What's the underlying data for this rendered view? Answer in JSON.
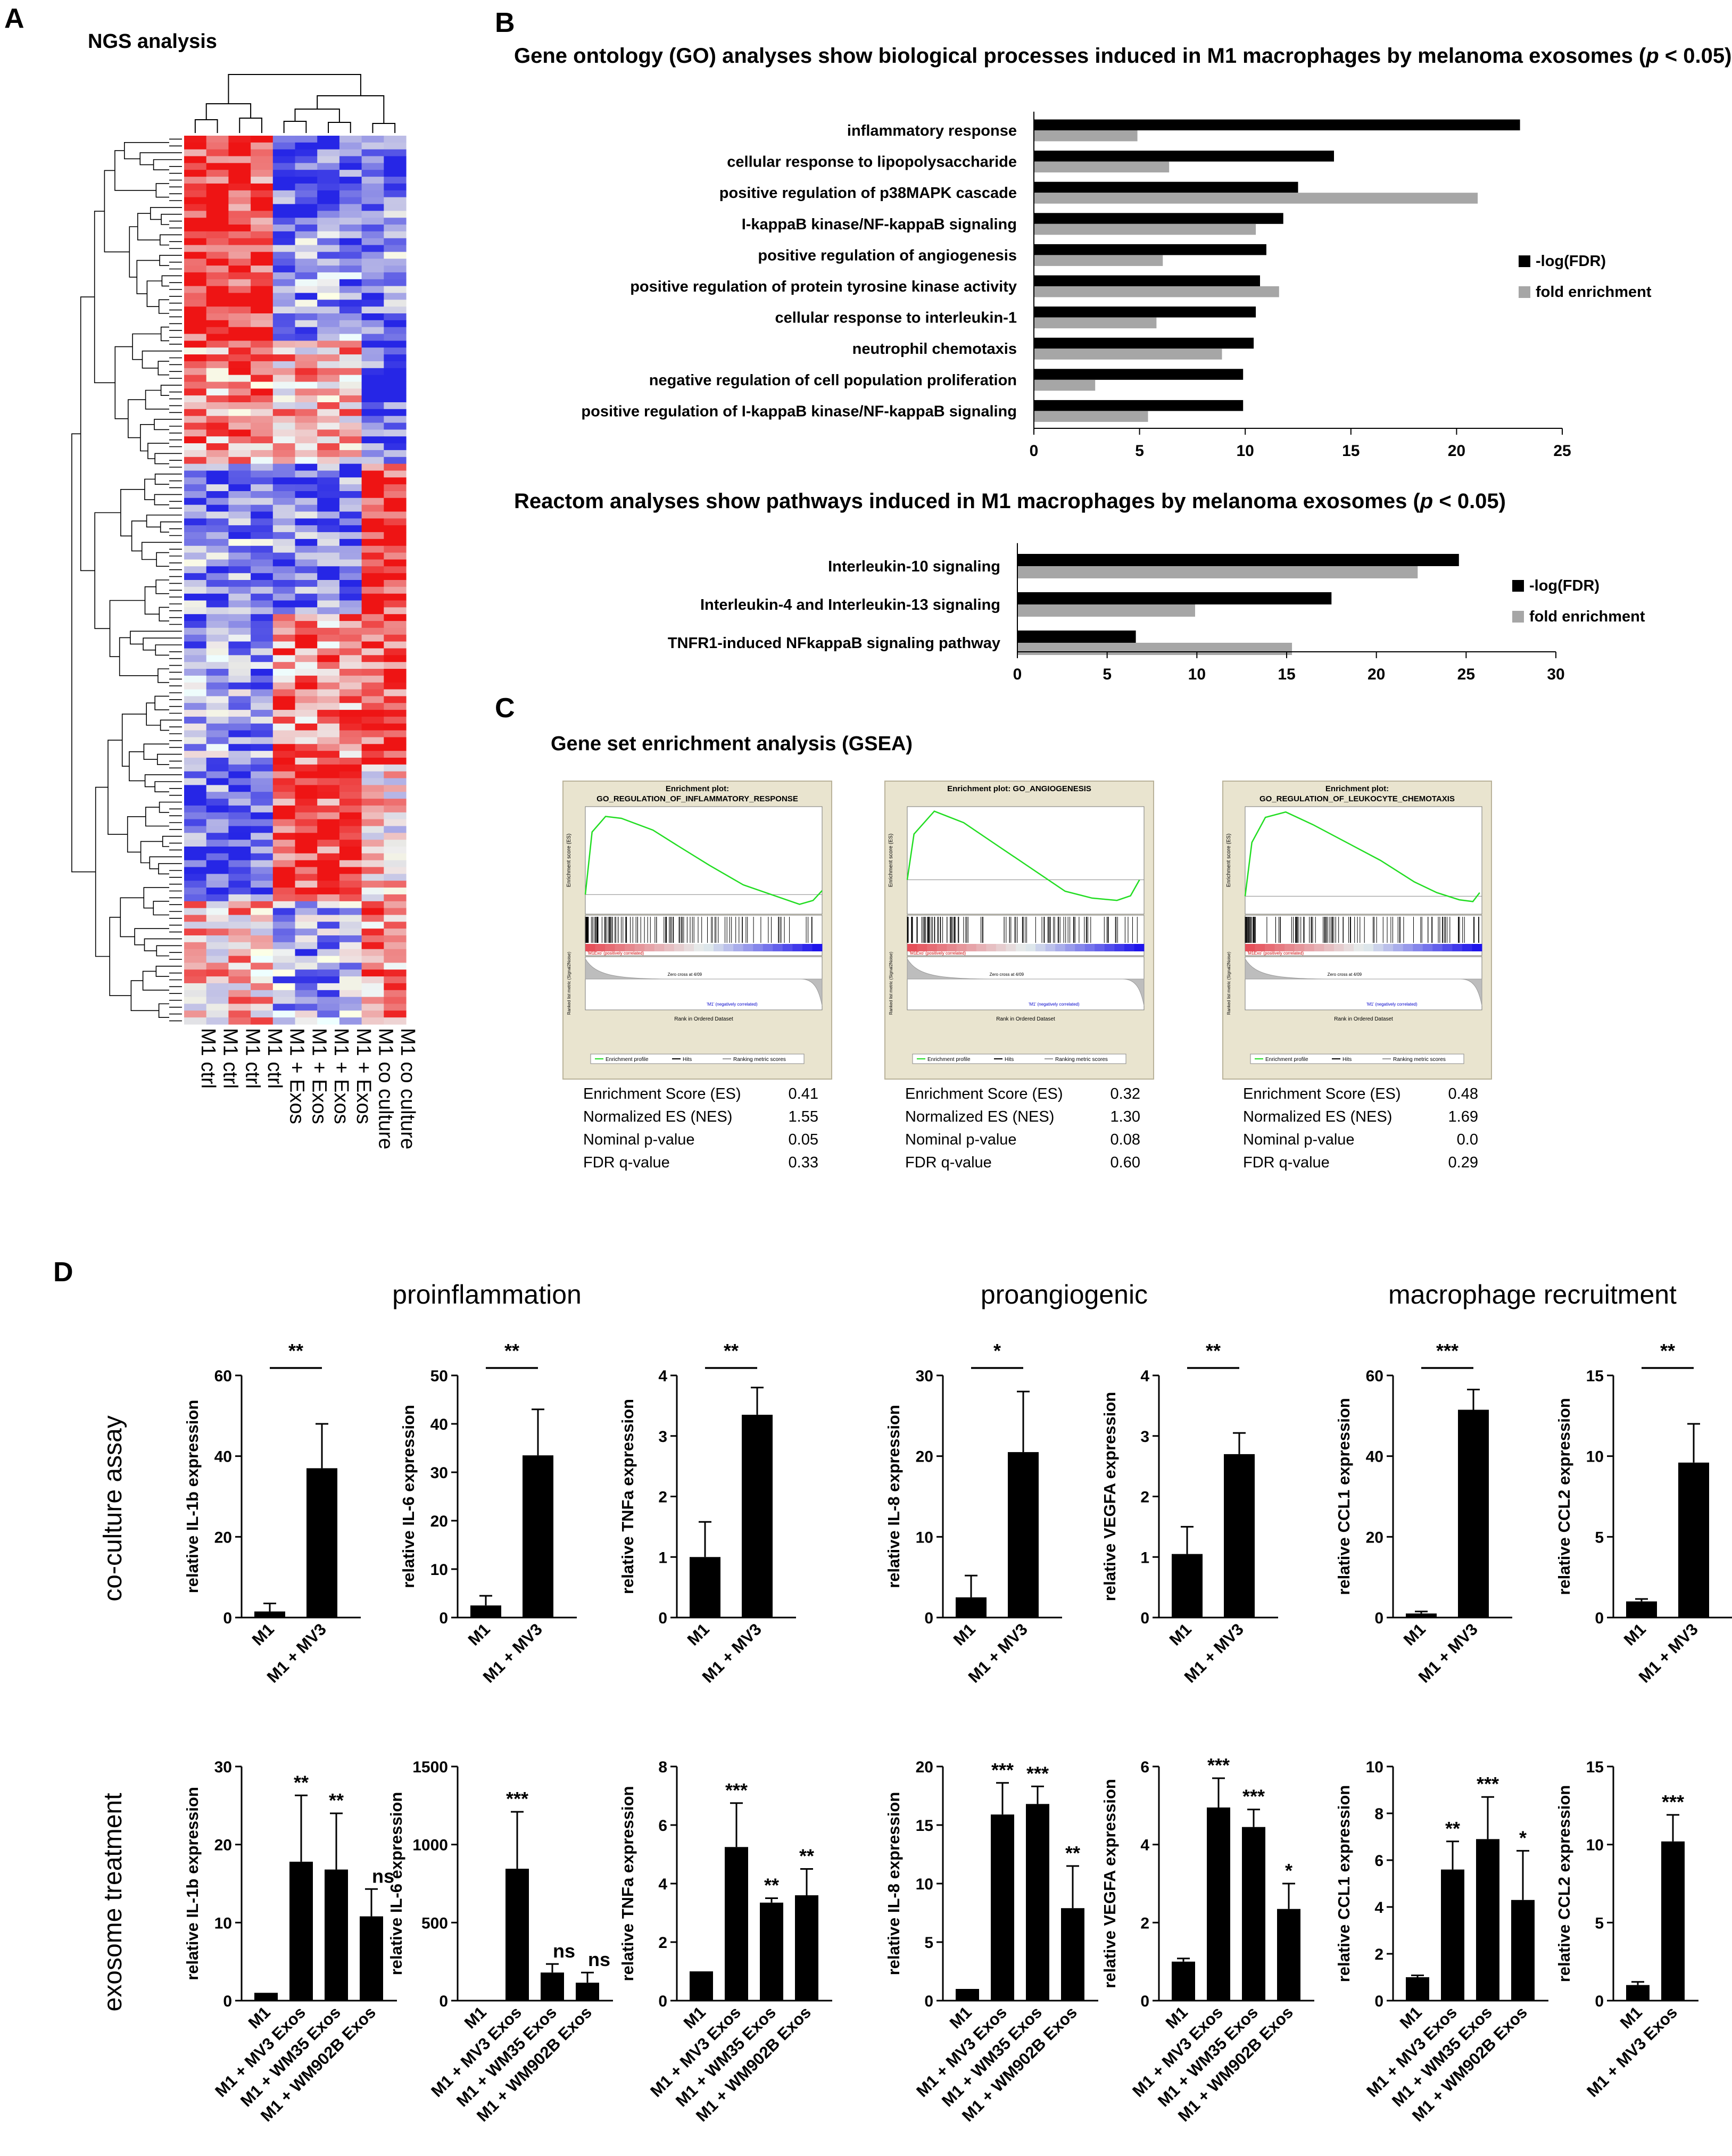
{
  "panel_labels": [
    "A",
    "B",
    "C",
    "D"
  ],
  "chart_data": [
    {
      "type": "heatmap",
      "id": "A",
      "title": "NGS analysis",
      "columns": [
        "M1 ctrl",
        "M1 ctrl",
        "M1 ctrl",
        "M1 ctrl",
        "M1 + Exos",
        "M1 + Exos",
        "M1 + Exos",
        "M1 + Exos",
        "M1 co culture",
        "M1 co culture"
      ],
      "colors": {
        "low": "#2233dd",
        "mid": "#ffffff",
        "high": "#ee1111"
      }
    },
    {
      "type": "bar",
      "id": "B1",
      "orientation": "horizontal",
      "title_pre": "Gene ontology (GO) analyses show biological processes induced in M1 macrophages by melanoma exosomes (",
      "title_p": "p",
      "title_post": " < 0.05)",
      "categories": [
        "inflammatory response",
        "cellular response to lipopolysaccharide",
        "positive regulation of p38MAPK cascade",
        "I-kappaB kinase/NF-kappaB signaling",
        "positive regulation of angiogenesis",
        "positive regulation of protein tyrosine kinase activity",
        "cellular response to interleukin-1",
        "neutrophil chemotaxis",
        "negative regulation of cell population proliferation",
        "positive regulation of I-kappaB kinase/NF-kappaB signaling"
      ],
      "series": [
        {
          "name": "-log(FDR)",
          "color": "#000000",
          "values": [
            23,
            14.2,
            12.5,
            11.8,
            11,
            10.7,
            10.5,
            10.4,
            9.9,
            9.9
          ]
        },
        {
          "name": "fold enrichment",
          "color": "#a6a6a6",
          "values": [
            4.9,
            6.4,
            21,
            10.5,
            6.1,
            11.6,
            5.8,
            8.9,
            2.9,
            5.4
          ]
        }
      ],
      "xlim": [
        0,
        25
      ],
      "xticks": [
        "0",
        "5",
        "10",
        "15",
        "20",
        "25"
      ]
    },
    {
      "type": "bar",
      "id": "B2",
      "orientation": "horizontal",
      "title_pre": "Reactom analyses show pathways induced in M1 macrophages by melanoma exosomes (",
      "title_p": "p",
      "title_post": " < 0.05)",
      "categories": [
        "Interleukin-10 signaling",
        "Interleukin-4 and Interleukin-13 signaling",
        "TNFR1-induced NFkappaB signaling pathway"
      ],
      "series": [
        {
          "name": "-log(FDR)",
          "color": "#000000",
          "values": [
            24.6,
            17.5,
            6.6
          ]
        },
        {
          "name": "fold enrichment",
          "color": "#a6a6a6",
          "values": [
            22.3,
            9.9,
            15.3
          ]
        }
      ],
      "xlim": [
        0,
        30
      ],
      "xticks": [
        "0",
        "5",
        "10",
        "15",
        "20",
        "25",
        "30"
      ]
    },
    {
      "type": "line",
      "id": "C",
      "title": "Gene set enrichment analysis (GSEA)",
      "plots": [
        {
          "plot_title_1": "Enrichment plot:",
          "plot_title_2": "GO_REGULATION_OF_INFLAMMATORY_RESPONSE",
          "ylim": [
            -0.1,
            0.45
          ],
          "es_curve": [
            [
              0,
              0
            ],
            [
              300,
              0.32
            ],
            [
              900,
              0.4
            ],
            [
              1600,
              0.39
            ],
            [
              3000,
              0.33
            ],
            [
              4100,
              0.25
            ],
            [
              5500,
              0.15
            ],
            [
              7000,
              0.05
            ],
            [
              8500,
              -0.01
            ],
            [
              9500,
              -0.05
            ],
            [
              10100,
              -0.03
            ],
            [
              10500,
              0.02
            ]
          ],
          "stats": [
            {
              "label": "Enrichment Score (ES)",
              "value": "0.41"
            },
            {
              "label": "Normalized ES (NES)",
              "value": "1.55"
            },
            {
              "label": "Nominal p-value",
              "value": "0.05"
            },
            {
              "label": "FDR q-value",
              "value": "0.33"
            }
          ]
        },
        {
          "plot_title_1": "Enrichment plot: GO_ANGIOGENESIS",
          "plot_title_2": "",
          "ylim": [
            -0.15,
            0.32
          ],
          "es_curve": [
            [
              0,
              0
            ],
            [
              300,
              0.2
            ],
            [
              1200,
              0.3
            ],
            [
              2500,
              0.25
            ],
            [
              4000,
              0.15
            ],
            [
              5500,
              0.05
            ],
            [
              7000,
              -0.05
            ],
            [
              8200,
              -0.08
            ],
            [
              9300,
              -0.09
            ],
            [
              9900,
              -0.07
            ],
            [
              10300,
              0.0
            ]
          ],
          "stats": [
            {
              "label": "Enrichment Score (ES)",
              "value": "0.32"
            },
            {
              "label": "Normalized ES (NES)",
              "value": "1.30"
            },
            {
              "label": "Nominal p-value",
              "value": "0.08"
            },
            {
              "label": "FDR q-value",
              "value": "0.60"
            }
          ]
        },
        {
          "plot_title_1": "Enrichment plot:",
          "plot_title_2": "GO_REGULATION_OF_LEUKOCYTE_CHEMOTAXIS",
          "ylim": [
            -0.1,
            0.5
          ],
          "es_curve": [
            [
              0,
              0
            ],
            [
              300,
              0.3
            ],
            [
              900,
              0.44
            ],
            [
              1800,
              0.47
            ],
            [
              3000,
              0.4
            ],
            [
              4500,
              0.3
            ],
            [
              6000,
              0.2
            ],
            [
              7500,
              0.08
            ],
            [
              8500,
              0.02
            ],
            [
              9500,
              -0.02
            ],
            [
              10100,
              -0.03
            ],
            [
              10400,
              0.02
            ]
          ],
          "stats": [
            {
              "label": "Enrichment Score (ES)",
              "value": "0.48"
            },
            {
              "label": "Normalized ES (NES)",
              "value": "1.69"
            },
            {
              "label": "Nominal p-value",
              "value": "0.0"
            },
            {
              "label": "FDR q-value",
              "value": "0.29"
            }
          ]
        }
      ],
      "x_axis_label": "Rank in Ordered Dataset",
      "y_axis_label": "Enrichment score (ES)",
      "metric_axis_label": "Ranked list metric (Signal2Noise)",
      "legend": [
        "Enrichment profile",
        "Hits",
        "Ranking metric scores"
      ],
      "pos_label": "'M1Exo' (positively correlated)",
      "neg_label": "'M1' (negatively correlated)",
      "zero_cross": "Zero cross at 4/09"
    },
    {
      "type": "bar",
      "id": "D",
      "group_titles": [
        "proinflammation",
        "proangiogenic",
        "macrophage recruitment"
      ],
      "row_labels": [
        "co-culture assay",
        "exosome treatment"
      ],
      "rows": [
        [
          {
            "ylabel": "relative IL-1b expression",
            "ylim": [
              0,
              60
            ],
            "yticks": [
              0,
              20,
              40,
              60
            ],
            "categories": [
              "M1",
              "M1 + MV3"
            ],
            "values": [
              1.5,
              37
            ],
            "errors": [
              2,
              11
            ],
            "bracket": "**"
          },
          {
            "ylabel": "relative IL-6 expression",
            "ylim": [
              0,
              50
            ],
            "yticks": [
              0,
              10,
              20,
              30,
              40,
              50
            ],
            "categories": [
              "M1",
              "M1 + MV3"
            ],
            "values": [
              2.5,
              33.5
            ],
            "errors": [
              2,
              9.5
            ],
            "bracket": "**"
          },
          {
            "ylabel": "relative TNFa expression",
            "ylim": [
              0,
              4
            ],
            "yticks": [
              0,
              1,
              2,
              3,
              4
            ],
            "categories": [
              "M1",
              "M1 + MV3"
            ],
            "values": [
              1,
              3.35
            ],
            "errors": [
              0.58,
              0.45
            ],
            "bracket": "**"
          },
          {
            "ylabel": "relative IL-8 expression",
            "ylim": [
              0,
              30
            ],
            "yticks": [
              0,
              10,
              20,
              30
            ],
            "categories": [
              "M1",
              "M1 + MV3"
            ],
            "values": [
              2.5,
              20.5
            ],
            "errors": [
              2.7,
              7.5
            ],
            "bracket": "*"
          },
          {
            "ylabel": "relative VEGFA expression",
            "ylim": [
              0,
              4
            ],
            "yticks": [
              0,
              1,
              2,
              3,
              4
            ],
            "categories": [
              "M1",
              "M1 + MV3"
            ],
            "values": [
              1.05,
              2.7
            ],
            "errors": [
              0.45,
              0.35
            ],
            "bracket": "**"
          },
          {
            "ylabel": "relative CCL1 expression",
            "ylim": [
              0,
              60
            ],
            "yticks": [
              0,
              20,
              40,
              60
            ],
            "categories": [
              "M1",
              "M1 + MV3"
            ],
            "values": [
              1,
              51.5
            ],
            "errors": [
              0.5,
              5
            ],
            "bracket": "***"
          },
          {
            "ylabel": "relative CCL2 expression",
            "ylim": [
              0,
              15
            ],
            "yticks": [
              0,
              5,
              10,
              15
            ],
            "categories": [
              "M1",
              "M1 + MV3"
            ],
            "values": [
              1,
              9.6
            ],
            "errors": [
              0.15,
              2.4
            ],
            "bracket": "**"
          }
        ],
        [
          {
            "ylabel": "relative IL-1b expression",
            "ylim": [
              0,
              30
            ],
            "yticks": [
              0,
              10,
              20,
              30
            ],
            "categories": [
              "M1",
              "M1 + MV3 Exos",
              "M1 + WM35 Exos",
              "M1 + WM902B Exos"
            ],
            "values": [
              1,
              17.8,
              16.8,
              10.8
            ],
            "errors": [
              0,
              8.5,
              7.2,
              3.5
            ],
            "sig": [
              "",
              "**",
              "**",
              "ns"
            ]
          },
          {
            "ylabel": "relative IL-6 expression",
            "ylim": [
              0,
              1500
            ],
            "yticks": [
              0,
              500,
              1000,
              1500
            ],
            "categories": [
              "M1",
              "M1 + MV3 Exos",
              "M1 + WM35 Exos",
              "M1 + WM902B Exos"
            ],
            "values": [
              1,
              845,
              180,
              115
            ],
            "errors": [
              0,
              365,
              55,
              65
            ],
            "sig": [
              "",
              "***",
              "ns",
              "ns"
            ]
          },
          {
            "ylabel": "relative TNFa expression",
            "ylim": [
              0,
              8
            ],
            "yticks": [
              0,
              2,
              4,
              6,
              8
            ],
            "categories": [
              "M1",
              "M1 + MV3 Exos",
              "M1 + WM35 Exos",
              "M1 + WM902B Exos"
            ],
            "values": [
              1,
              5.25,
              3.35,
              3.6
            ],
            "errors": [
              0,
              1.5,
              0.15,
              0.9
            ],
            "sig": [
              "",
              "***",
              "**",
              "**"
            ]
          },
          {
            "ylabel": "relative IL-8 expression",
            "ylim": [
              0,
              20
            ],
            "yticks": [
              0,
              5,
              10,
              15,
              20
            ],
            "categories": [
              "M1",
              "M1 + MV3 Exos",
              "M1 + WM35 Exos",
              "M1 + WM902B Exos"
            ],
            "values": [
              1,
              15.9,
              16.8,
              7.9
            ],
            "errors": [
              0,
              2.7,
              1.5,
              3.6
            ],
            "sig": [
              "",
              "***",
              "***",
              "**"
            ]
          },
          {
            "ylabel": "relative VEGFA expression",
            "ylim": [
              0,
              6
            ],
            "yticks": [
              0,
              2,
              4,
              6
            ],
            "categories": [
              "M1",
              "M1 + MV3 Exos",
              "M1 + WM35 Exos",
              "M1 + WM902B Exos"
            ],
            "values": [
              1,
              4.95,
              4.45,
              2.35
            ],
            "errors": [
              0.08,
              0.75,
              0.45,
              0.65
            ],
            "sig": [
              "",
              "***",
              "***",
              "*"
            ]
          },
          {
            "ylabel": "relative CCL1 expression",
            "ylim": [
              0,
              10
            ],
            "yticks": [
              0,
              2,
              4,
              6,
              8,
              10
            ],
            "categories": [
              "M1",
              "M1 + MV3 Exos",
              "M1 + WM35 Exos",
              "M1 + WM902B Exos"
            ],
            "values": [
              1,
              5.6,
              6.9,
              4.3
            ],
            "errors": [
              0.08,
              1.2,
              1.8,
              2.1
            ],
            "sig": [
              "",
              "**",
              "***",
              "*"
            ]
          },
          {
            "ylabel": "relative CCL2 expression",
            "ylim": [
              0,
              15
            ],
            "yticks": [
              0,
              5,
              10,
              15
            ],
            "categories": [
              "M1",
              "M1 + MV3 Exos"
            ],
            "values": [
              1,
              10.2
            ],
            "errors": [
              0.2,
              1.7
            ],
            "sig": [
              "",
              "***"
            ]
          }
        ]
      ]
    }
  ]
}
